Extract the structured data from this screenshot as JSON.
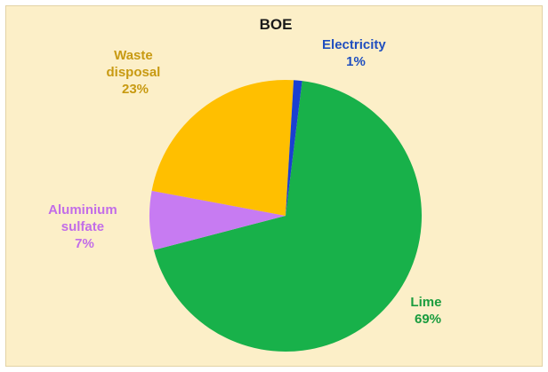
{
  "chart_data": {
    "type": "pie",
    "title": "BOE",
    "slices": [
      {
        "name": "Lime",
        "value": 69,
        "percent_label": "69%",
        "color": "#18b14a",
        "label_color": "#1a9c3e"
      },
      {
        "name": "Aluminium sulfate",
        "value": 7,
        "percent_label": "7%",
        "color": "#c77bf2",
        "label_color": "#c26de8"
      },
      {
        "name": "Waste disposal",
        "value": 23,
        "percent_label": "23%",
        "color": "#ffbf00",
        "label_color": "#c89a12"
      },
      {
        "name": "Electricity",
        "value": 1,
        "percent_label": "1%",
        "color": "#1a3fd1",
        "label_color": "#1f4fbf"
      }
    ],
    "labels": {
      "lime": [
        "Lime",
        "69%"
      ],
      "aluminium_sulfate": [
        "Aluminium",
        "sulfate",
        "7%"
      ],
      "waste_disposal": [
        "Waste",
        "disposal",
        "23%"
      ],
      "electricity": [
        "Electricity",
        "1%"
      ]
    },
    "background_color": "#fcefc8",
    "title_color": "#1a1a1a"
  }
}
